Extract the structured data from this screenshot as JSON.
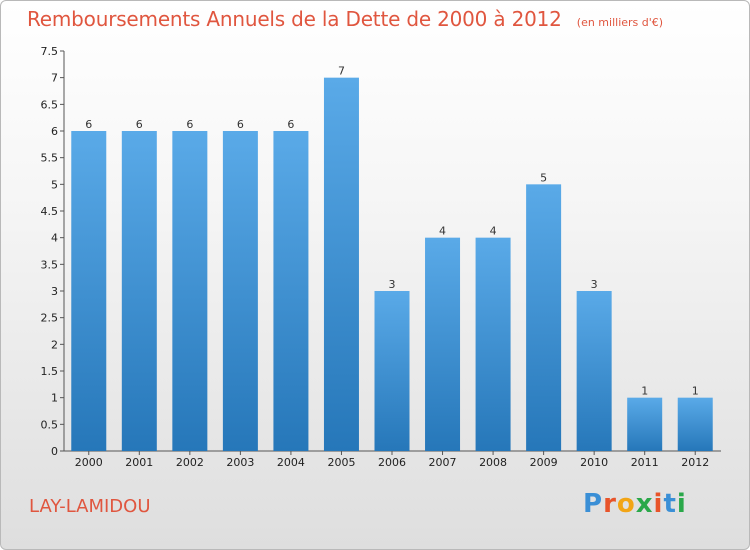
{
  "title": "Remboursements Annuels de la Dette de 2000 à 2012",
  "subtitle": "(en milliers d'€)",
  "commune": "LAY-LAMIDOU",
  "brand": {
    "letters": [
      "P",
      "r",
      "o",
      "x",
      "i",
      "t",
      "i"
    ],
    "colors": [
      "#3a8fd6",
      "#e8542a",
      "#f2a516",
      "#2aa84a",
      "#e8542a",
      "#3a8fd6",
      "#2aa84a"
    ]
  },
  "colors": {
    "bar_top": "#5aaae8",
    "bar_bottom": "#2677b9",
    "accent": "#e0563f"
  },
  "chart_data": {
    "type": "bar",
    "title": "Remboursements Annuels de la Dette de 2000 à 2012",
    "categories": [
      "2000",
      "2001",
      "2002",
      "2003",
      "2004",
      "2005",
      "2006",
      "2007",
      "2008",
      "2009",
      "2010",
      "2011",
      "2012"
    ],
    "values": [
      6,
      6,
      6,
      6,
      6,
      7,
      3,
      4,
      4,
      5,
      3,
      1,
      1
    ],
    "data_labels": [
      "6",
      "6",
      "6",
      "6",
      "6",
      "7",
      "3",
      "4",
      "4",
      "5",
      "3",
      "1",
      "1"
    ],
    "ylim": [
      0,
      7.5
    ],
    "yticks": [
      "0",
      "0.5",
      "1",
      "1.5",
      "2",
      "2.5",
      "3",
      "3.5",
      "4",
      "4.5",
      "5",
      "5.5",
      "6",
      "6.5",
      "7",
      "7.5"
    ],
    "grid": false,
    "legend": "none"
  }
}
